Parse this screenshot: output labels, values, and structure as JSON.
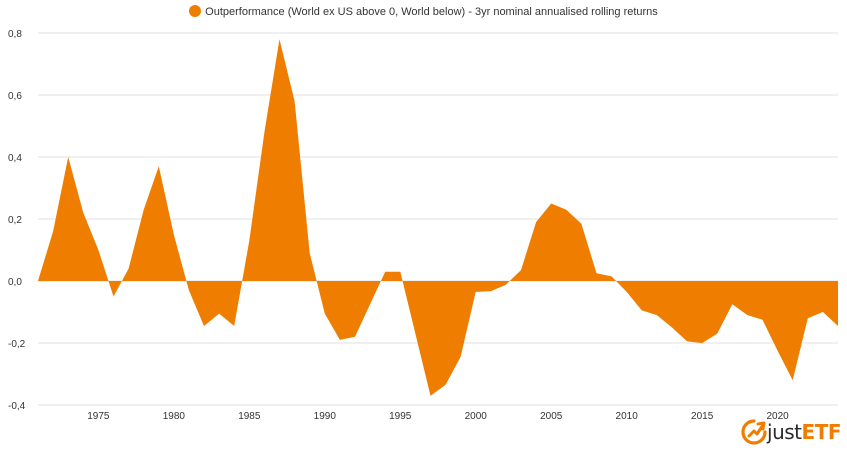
{
  "legend": {
    "label": "Outperformance (World ex US above 0, World below) - 3yr nominal annualised rolling returns",
    "color": "#ee7d00"
  },
  "logo": {
    "text_part1": "just",
    "text_part2": "ETF",
    "icon": "justetf-logo-icon"
  },
  "colors": {
    "area": "#ee7d00",
    "grid": "#e0e0e0",
    "text": "#333333"
  },
  "chart_data": {
    "type": "area",
    "title": "",
    "xlabel": "",
    "ylabel": "",
    "ylim": [
      -0.4,
      0.8
    ],
    "xlim": [
      1971,
      2024
    ],
    "y_ticks": [
      "0,8",
      "0,6",
      "0,4",
      "0,2",
      "0,0",
      "-0,2",
      "-0,4"
    ],
    "y_tick_values": [
      0.8,
      0.6,
      0.4,
      0.2,
      0.0,
      -0.2,
      -0.4
    ],
    "x_ticks": [
      "1975",
      "1980",
      "1985",
      "1990",
      "1995",
      "2000",
      "2005",
      "2010",
      "2015",
      "2020"
    ],
    "x_tick_values": [
      1975,
      1980,
      1985,
      1990,
      1995,
      2000,
      2005,
      2010,
      2015,
      2020
    ],
    "grid": "horizontal",
    "legend_position": "top-center",
    "series": [
      {
        "name": "Outperformance (World ex US above 0, World below) - 3yr nominal annualised rolling returns",
        "x": [
          1971,
          1972,
          1973,
          1974,
          1975,
          1976,
          1977,
          1978,
          1979,
          1980,
          1981,
          1982,
          1983,
          1984,
          1985,
          1986,
          1987,
          1988,
          1989,
          1990,
          1991,
          1992,
          1993,
          1994,
          1995,
          1996,
          1997,
          1998,
          1999,
          2000,
          2001,
          2002,
          2003,
          2004,
          2005,
          2006,
          2007,
          2008,
          2009,
          2010,
          2011,
          2012,
          2013,
          2014,
          2015,
          2016,
          2017,
          2018,
          2019,
          2020,
          2021,
          2022,
          2023,
          2024
        ],
        "values": [
          0.0,
          0.16,
          0.4,
          0.22,
          0.1,
          -0.05,
          0.04,
          0.23,
          0.37,
          0.15,
          -0.03,
          -0.145,
          -0.105,
          -0.145,
          0.13,
          0.48,
          0.78,
          0.58,
          0.09,
          -0.105,
          -0.19,
          -0.18,
          -0.075,
          0.03,
          0.03,
          -0.17,
          -0.37,
          -0.335,
          -0.245,
          -0.035,
          -0.033,
          -0.012,
          0.035,
          0.19,
          0.25,
          0.23,
          0.185,
          0.025,
          0.015,
          -0.035,
          -0.095,
          -0.11,
          -0.15,
          -0.195,
          -0.2,
          -0.17,
          -0.075,
          -0.11,
          -0.125,
          -0.225,
          -0.32,
          -0.12,
          -0.1,
          -0.145
        ]
      }
    ]
  }
}
